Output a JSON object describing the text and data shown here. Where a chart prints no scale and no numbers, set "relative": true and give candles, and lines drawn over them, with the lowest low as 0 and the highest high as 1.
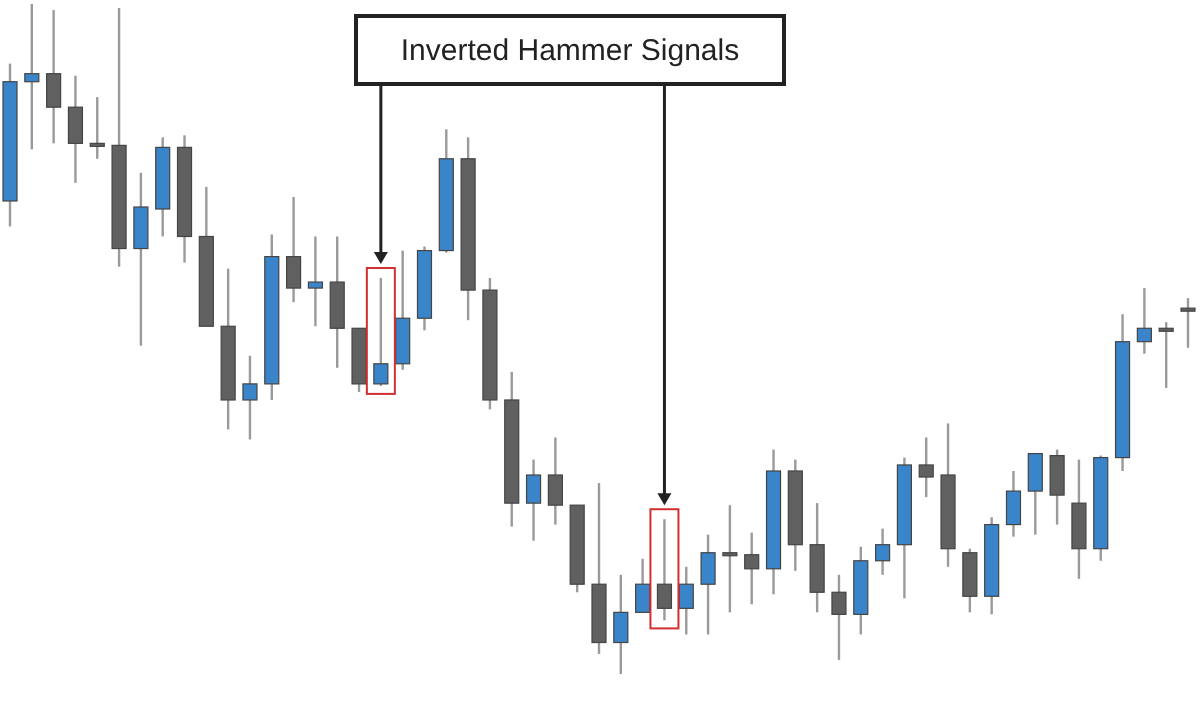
{
  "chart_data": {
    "type": "candlestick",
    "relative": true,
    "annotations": [
      "Inverted Hammer Signals"
    ],
    "categories": [
      null,
      null,
      null,
      null,
      null,
      null,
      null,
      null,
      null,
      null,
      null,
      null,
      null,
      null,
      null,
      null,
      null,
      null,
      null,
      null,
      null,
      null,
      null,
      null,
      null,
      null,
      null,
      null,
      null,
      null,
      null,
      null,
      null,
      null,
      null,
      null,
      null,
      null,
      null,
      null,
      null,
      null,
      null,
      null,
      null,
      null,
      null,
      null,
      null,
      null,
      null,
      null,
      null,
      null,
      null
    ],
    "ohlc": [
      [
        0.706,
        0.911,
        0.668,
        0.884
      ],
      [
        0.884,
        1,
        0.783,
        0.896
      ],
      [
        0.896,
        0.991,
        0.792,
        0.846
      ],
      [
        0.846,
        0.893,
        0.733,
        0.792
      ],
      [
        0.792,
        0.861,
        0.769,
        0.789
      ],
      [
        0.789,
        0.994,
        0.608,
        0.635
      ],
      [
        0.635,
        0.748,
        0.49,
        0.697
      ],
      [
        0.694,
        0.801,
        0.653,
        0.786
      ],
      [
        0.786,
        0.804,
        0.614,
        0.653
      ],
      [
        0.653,
        0.727,
        0.519,
        0.519
      ],
      [
        0.519,
        0.605,
        0.365,
        0.409
      ],
      [
        0.409,
        0.475,
        0.35,
        0.433
      ],
      [
        0.433,
        0.656,
        0.409,
        0.623
      ],
      [
        0.623,
        0.712,
        0.555,
        0.576
      ],
      [
        0.576,
        0.653,
        0.519,
        0.585
      ],
      [
        0.585,
        0.653,
        0.457,
        0.516
      ],
      [
        0.516,
        0.516,
        0.421,
        0.433
      ],
      [
        0.433,
        0.591,
        0.43,
        0.463
      ],
      [
        0.463,
        0.632,
        0.454,
        0.531
      ],
      [
        0.531,
        0.638,
        0.513,
        0.632
      ],
      [
        0.632,
        0.813,
        0.629,
        0.769
      ],
      [
        0.769,
        0.801,
        0.528,
        0.573
      ],
      [
        0.573,
        0.591,
        0.395,
        0.409
      ],
      [
        0.409,
        0.451,
        0.22,
        0.255
      ],
      [
        0.255,
        0.32,
        0.199,
        0.297
      ],
      [
        0.297,
        0.353,
        0.223,
        0.252
      ],
      [
        0.252,
        0.252,
        0.122,
        0.134
      ],
      [
        0.134,
        0.285,
        0.03,
        0.047
      ],
      [
        0.047,
        0.148,
        0,
        0.092
      ],
      [
        0.092,
        0.172,
        0.092,
        0.134
      ],
      [
        0.134,
        0.231,
        0.08,
        0.098
      ],
      [
        0.098,
        0.16,
        0.059,
        0.134
      ],
      [
        0.134,
        0.208,
        0.059,
        0.181
      ],
      [
        0.181,
        0.252,
        0.092,
        0.178
      ],
      [
        0.178,
        0.211,
        0.104,
        0.157
      ],
      [
        0.157,
        0.335,
        0.119,
        0.303
      ],
      [
        0.303,
        0.32,
        0.154,
        0.193
      ],
      [
        0.193,
        0.255,
        0.092,
        0.122
      ],
      [
        0.122,
        0.148,
        0.021,
        0.089
      ],
      [
        0.089,
        0.19,
        0.059,
        0.169
      ],
      [
        0.169,
        0.217,
        0.148,
        0.193
      ],
      [
        0.193,
        0.323,
        0.113,
        0.312
      ],
      [
        0.312,
        0.353,
        0.264,
        0.294
      ],
      [
        0.297,
        0.374,
        0.16,
        0.187
      ],
      [
        0.181,
        0.187,
        0.092,
        0.116
      ],
      [
        0.116,
        0.234,
        0.089,
        0.223
      ],
      [
        0.223,
        0.303,
        0.205,
        0.273
      ],
      [
        0.273,
        0.329,
        0.208,
        0.329
      ],
      [
        0.326,
        0.335,
        0.223,
        0.267
      ],
      [
        0.255,
        0.32,
        0.142,
        0.187
      ],
      [
        0.187,
        0.326,
        0.169,
        0.323
      ],
      [
        0.323,
        0.537,
        0.303,
        0.496
      ],
      [
        0.496,
        0.576,
        0.478,
        0.516
      ],
      [
        0.516,
        0.525,
        0.427,
        0.513
      ],
      [
        0.546,
        0.561,
        0.487,
        0.543
      ]
    ],
    "colors": [
      "#3a85c9",
      "#3a85c9",
      "#606060",
      "#606060",
      "#606060",
      "#606060",
      "#3a85c9",
      "#3a85c9",
      "#606060",
      "#606060",
      "#606060",
      "#3a85c9",
      "#3a85c9",
      "#606060",
      "#3a85c9",
      "#606060",
      "#606060",
      "#3a85c9",
      "#3a85c9",
      "#3a85c9",
      "#3a85c9",
      "#606060",
      "#606060",
      "#606060",
      "#3a85c9",
      "#606060",
      "#606060",
      "#606060",
      "#3a85c9",
      "#3a85c9",
      "#606060",
      "#3a85c9",
      "#3a85c9",
      "#606060",
      "#606060",
      "#3a85c9",
      "#606060",
      "#606060",
      "#606060",
      "#3a85c9",
      "#3a85c9",
      "#3a85c9",
      "#606060",
      "#606060",
      "#606060",
      "#3a85c9",
      "#3a85c9",
      "#3a85c9",
      "#606060",
      "#606060",
      "#3a85c9",
      "#3a85c9",
      "#3a85c9",
      "#606060",
      "#606060"
    ]
  }
}
